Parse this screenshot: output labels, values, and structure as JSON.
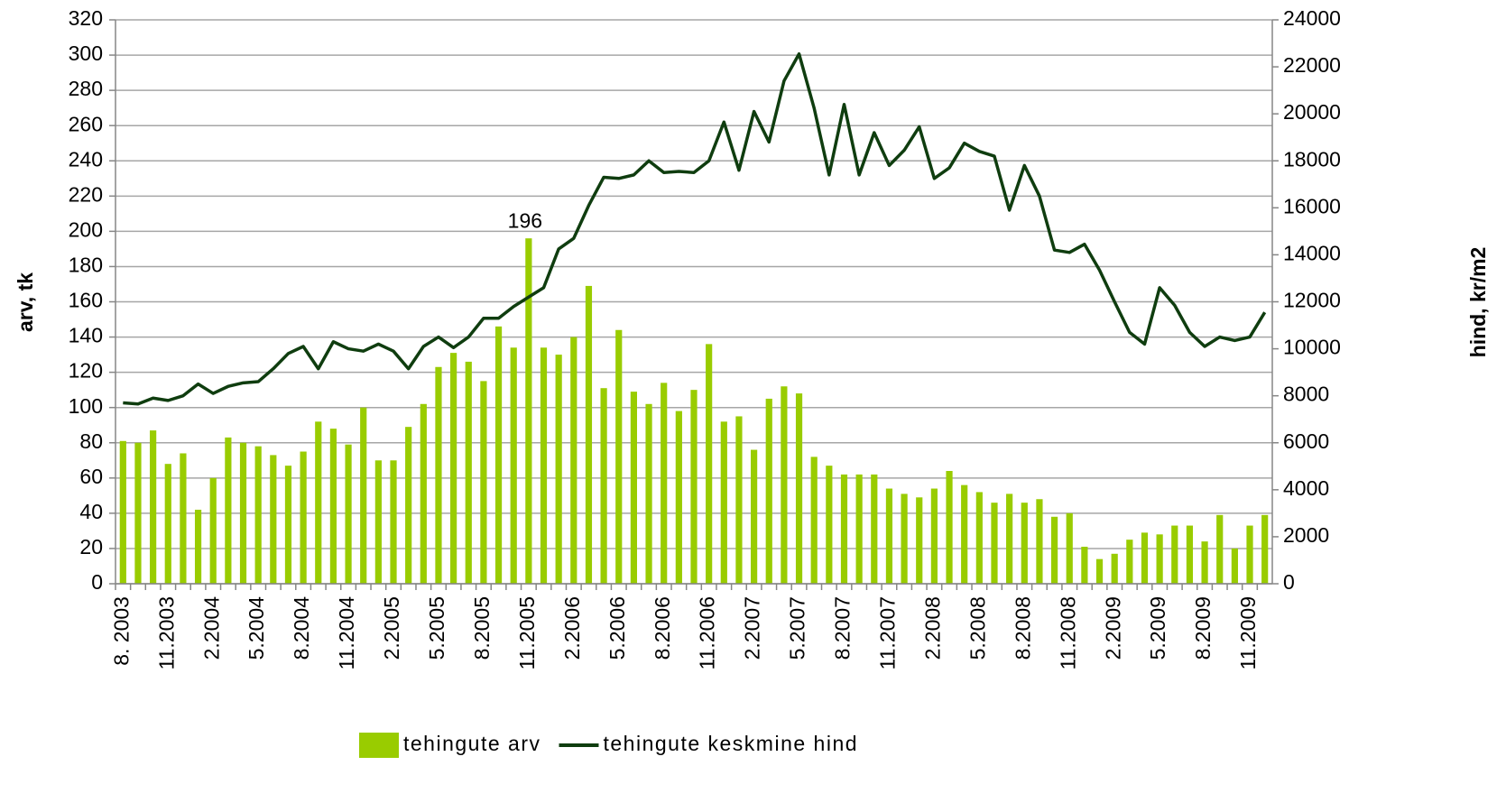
{
  "chart_data": {
    "type": "bar-line",
    "y_label": "arv, tk",
    "y2_label": "hind, kr/m2",
    "categories": [
      "8. 2003",
      null,
      null,
      "11.2003",
      null,
      null,
      "2.2004",
      null,
      null,
      "5.2004",
      null,
      null,
      "8.2004",
      null,
      null,
      "11.2004",
      null,
      null,
      "2.2005",
      null,
      null,
      "5.2005",
      null,
      null,
      "8.2005",
      null,
      null,
      "11.2005",
      null,
      null,
      "2.2006",
      null,
      null,
      "5.2006",
      null,
      null,
      "8.2006",
      null,
      null,
      "11.2006",
      null,
      null,
      "2.2007",
      null,
      null,
      "5.2007",
      null,
      null,
      "8.2007",
      null,
      null,
      "11.2007",
      null,
      null,
      "2.2008",
      null,
      null,
      "5.2008",
      null,
      null,
      "8.2008",
      null,
      null,
      "11.2008",
      null,
      null,
      "2.2009",
      null,
      null,
      "5.2009",
      null,
      null,
      "8.2009",
      null,
      null,
      "11.2009",
      null
    ],
    "series": [
      {
        "name": "tehingute arv",
        "type": "bar",
        "axis": "y",
        "color": "#99cc00",
        "values": [
          81,
          80,
          87,
          68,
          74,
          42,
          60,
          83,
          80,
          78,
          73,
          67,
          75,
          92,
          88,
          79,
          100,
          70,
          70,
          89,
          102,
          123,
          131,
          126,
          115,
          146,
          134,
          196,
          134,
          130,
          140,
          169,
          111,
          144,
          109,
          102,
          114,
          98,
          110,
          136,
          92,
          95,
          76,
          105,
          112,
          108,
          72,
          67,
          62,
          62,
          62,
          54,
          51,
          49,
          54,
          64,
          56,
          52,
          46,
          51,
          46,
          48,
          38,
          40,
          21,
          14,
          17,
          25,
          29,
          28,
          33,
          33,
          24,
          39,
          20,
          33,
          39
        ],
        "value_labels": [
          null,
          null,
          null,
          null,
          null,
          null,
          null,
          null,
          null,
          null,
          null,
          null,
          null,
          null,
          null,
          null,
          null,
          null,
          null,
          null,
          null,
          null,
          null,
          null,
          null,
          null,
          null,
          "196",
          null,
          null,
          null,
          null,
          null,
          null,
          null,
          null,
          null,
          null,
          null,
          null,
          null,
          null,
          null,
          null,
          null,
          null,
          null,
          null,
          null,
          null,
          null,
          null,
          null,
          null,
          null,
          null,
          null,
          null,
          null,
          null,
          null,
          null,
          null,
          null,
          null,
          null,
          null,
          null,
          null,
          null,
          null,
          null,
          null,
          null,
          null,
          null,
          null
        ]
      },
      {
        "name": "tehingute keskmine hind",
        "type": "line",
        "axis": "y2",
        "color": "#0f3d0f",
        "values": [
          7700,
          7650,
          7900,
          7800,
          8000,
          8500,
          8100,
          8400,
          8550,
          8600,
          9150,
          9800,
          10100,
          9150,
          10300,
          10000,
          9900,
          10200,
          9900,
          9150,
          10100,
          10500,
          10050,
          10500,
          11300,
          11300,
          11800,
          12200,
          12600,
          14250,
          14700,
          16100,
          17300,
          17250,
          17400,
          18000,
          17500,
          17550,
          17500,
          18000,
          19650,
          17600,
          20100,
          18800,
          21400,
          22550,
          20250,
          17400,
          20400,
          17400,
          19200,
          17800,
          18450,
          19450,
          17250,
          17700,
          18750,
          18400,
          18200,
          15900,
          17800,
          16500,
          14200,
          14100,
          14450,
          13350,
          12000,
          10700,
          10200,
          12600,
          11850,
          10700,
          10100,
          10500,
          10350,
          10500,
          11550
        ]
      }
    ],
    "ylim": [
      0,
      320
    ],
    "yticks": [
      0,
      20,
      40,
      60,
      80,
      100,
      120,
      140,
      160,
      180,
      200,
      220,
      240,
      260,
      280,
      300,
      320
    ],
    "y2lim": [
      0,
      24000
    ],
    "y2ticks": [
      0,
      2000,
      4000,
      6000,
      8000,
      10000,
      12000,
      14000,
      16000,
      18000,
      20000,
      22000,
      24000
    ],
    "grid": true,
    "legend": "bottom"
  }
}
